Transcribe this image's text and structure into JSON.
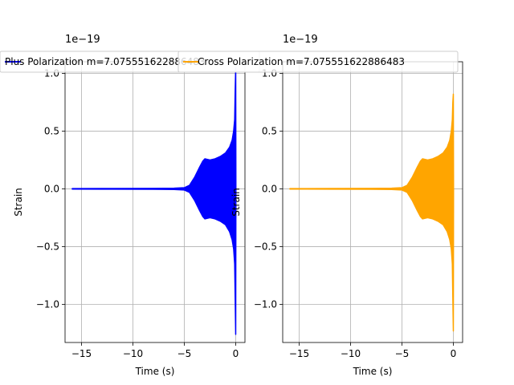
{
  "chart_data": [
    {
      "type": "line",
      "title": "",
      "xlabel": "Time (s)",
      "ylabel": "Strain",
      "y_scale_label": "1e−19",
      "xlim": [
        -16.6,
        0.9
      ],
      "ylim": [
        -1.33,
        1.1
      ],
      "xticks": [
        -15,
        -10,
        -5,
        0
      ],
      "xtick_labels": [
        "−15",
        "−10",
        "−5",
        "0"
      ],
      "yticks": [
        -1.0,
        -0.5,
        0.0,
        0.5,
        1.0
      ],
      "ytick_labels": [
        "−1.0",
        "−0.5",
        "0.0",
        "0.5",
        "1.0"
      ],
      "grid": true,
      "legend_position": "top",
      "series": [
        {
          "name": "Plus Polarization m=7.075551622886483",
          "color": "#0000ff",
          "x": [
            -15.9,
            -12.0,
            -8.0,
            -6.0,
            -5.0,
            -4.5,
            -4.0,
            -3.5,
            -3.2,
            -3.0,
            -2.5,
            -2.0,
            -1.5,
            -1.0,
            -0.6,
            -0.35,
            -0.2,
            -0.1,
            -0.05,
            0.0,
            0.02
          ],
          "upper": [
            0.002,
            0.003,
            0.004,
            0.006,
            0.01,
            0.03,
            0.1,
            0.19,
            0.24,
            0.26,
            0.25,
            0.26,
            0.28,
            0.31,
            0.36,
            0.42,
            0.5,
            0.6,
            0.85,
            1.05,
            0.0
          ],
          "lower": [
            -0.002,
            -0.003,
            -0.004,
            -0.006,
            -0.01,
            -0.03,
            -0.1,
            -0.19,
            -0.24,
            -0.26,
            -0.25,
            -0.26,
            -0.28,
            -0.31,
            -0.37,
            -0.44,
            -0.52,
            -0.65,
            -0.95,
            -1.26,
            0.0
          ]
        }
      ]
    },
    {
      "type": "line",
      "title": "",
      "xlabel": "Time (s)",
      "ylabel": "Strain",
      "y_scale_label": "1e−19",
      "xlim": [
        -16.6,
        0.9
      ],
      "ylim": [
        -1.33,
        1.1
      ],
      "xticks": [
        -15,
        -10,
        -5,
        0
      ],
      "xtick_labels": [
        "−15",
        "−10",
        "−5",
        "0"
      ],
      "yticks": [
        -1.0,
        -0.5,
        0.0,
        0.5,
        1.0
      ],
      "ytick_labels": [
        "−1.0",
        "−0.5",
        "0.0",
        "0.5",
        "1.0"
      ],
      "grid": true,
      "legend_position": "top",
      "series": [
        {
          "name": "Cross Polarization m=7.075551622886483",
          "color": "#ffa500",
          "x": [
            -15.9,
            -12.0,
            -8.0,
            -6.0,
            -5.0,
            -4.5,
            -4.0,
            -3.5,
            -3.2,
            -3.0,
            -2.5,
            -2.0,
            -1.5,
            -1.0,
            -0.6,
            -0.35,
            -0.2,
            -0.1,
            -0.05,
            0.0,
            0.02
          ],
          "upper": [
            0.002,
            0.003,
            0.004,
            0.006,
            0.01,
            0.03,
            0.1,
            0.19,
            0.24,
            0.26,
            0.25,
            0.26,
            0.28,
            0.31,
            0.36,
            0.42,
            0.5,
            0.6,
            0.75,
            0.82,
            0.0
          ],
          "lower": [
            -0.002,
            -0.003,
            -0.004,
            -0.006,
            -0.01,
            -0.03,
            -0.1,
            -0.19,
            -0.24,
            -0.26,
            -0.25,
            -0.26,
            -0.28,
            -0.31,
            -0.37,
            -0.44,
            -0.52,
            -0.65,
            -0.95,
            -1.23,
            0.0
          ]
        }
      ]
    }
  ]
}
